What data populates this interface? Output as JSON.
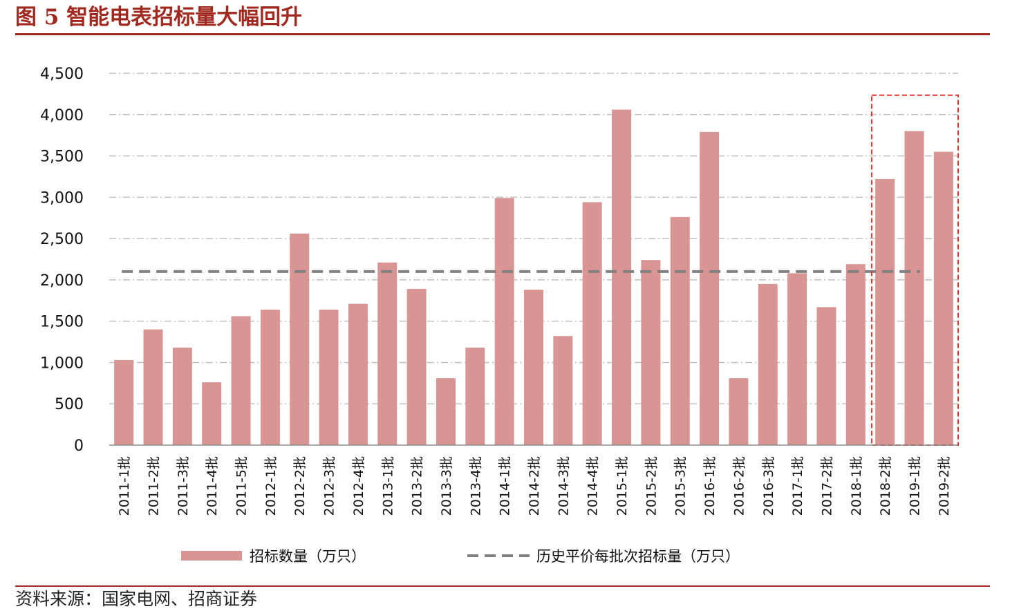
{
  "figure": {
    "title": "图 5 智能电表招标量大幅回升",
    "source": "资料来源：国家电网、招商证券"
  },
  "colors": {
    "bar": "#d99594",
    "avg_line": "#808080",
    "highlight_box": "#e8322c",
    "grid": "#bfbfbf",
    "accent": "#a2291f"
  },
  "chart_data": {
    "type": "bar",
    "categories": [
      "2011-1批",
      "2011-2批",
      "2011-3批",
      "2011-4批",
      "2011-5批",
      "2012-1批",
      "2012-2批",
      "2012-3批",
      "2012-4批",
      "2013-1批",
      "2013-2批",
      "2013-3批",
      "2013-4批",
      "2014-1批",
      "2014-2批",
      "2014-3批",
      "2014-4批",
      "2015-1批",
      "2015-2批",
      "2015-3批",
      "2016-1批",
      "2016-2批",
      "2016-3批",
      "2017-1批",
      "2017-2批",
      "2018-1批",
      "2018-2批",
      "2019-1批",
      "2019-2批"
    ],
    "series": [
      {
        "name": "招标数量（万只）",
        "type": "bar",
        "values": [
          1030,
          1400,
          1180,
          760,
          1560,
          1640,
          2560,
          1640,
          1710,
          2210,
          1890,
          810,
          1180,
          2990,
          1880,
          1320,
          2940,
          4060,
          2240,
          2760,
          3790,
          810,
          1950,
          2080,
          1670,
          2190,
          3220,
          3800,
          3550
        ]
      },
      {
        "name": "历史平价每批次招标量（万只）",
        "type": "line-dashed",
        "value": 2100
      }
    ],
    "yticks": [
      "0",
      "500",
      "1,000",
      "1,500",
      "2,000",
      "2,500",
      "3,000",
      "3,500",
      "4,000",
      "4,500"
    ],
    "ylim": [
      0,
      4500
    ],
    "grid": "horizontal dash-dot",
    "highlight_categories": [
      "2018-2批",
      "2019-1批",
      "2019-2批"
    ],
    "legend_position": "bottom"
  }
}
